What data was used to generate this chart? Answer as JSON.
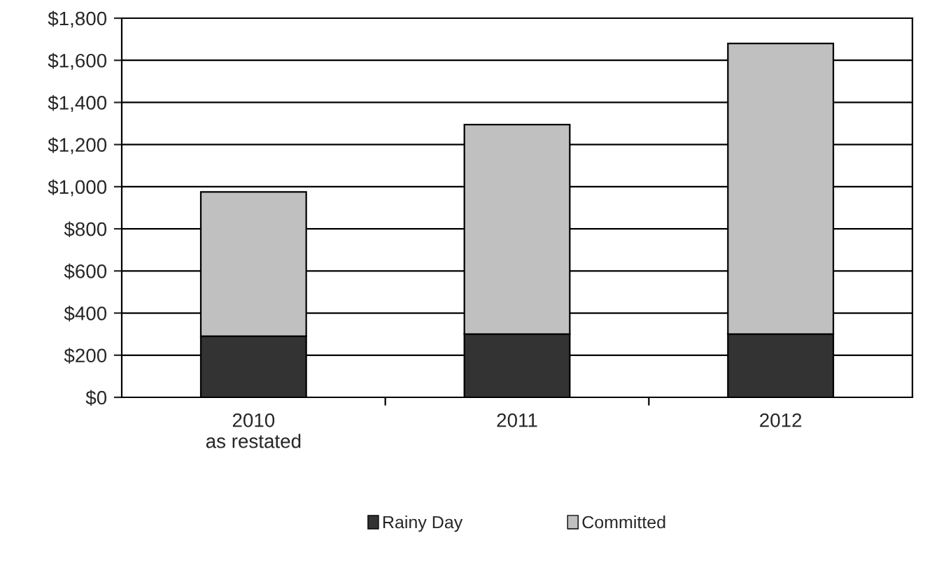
{
  "chart_data": {
    "type": "bar",
    "stacked": true,
    "categories": [
      "2010\nas restated",
      "2011",
      "2012"
    ],
    "series": [
      {
        "name": "Rainy Day",
        "color": "#333333",
        "values": [
          290,
          300,
          300
        ]
      },
      {
        "name": "Committed",
        "color": "#c0c0c0",
        "values": [
          685,
          995,
          1380
        ]
      }
    ],
    "ylim": [
      0,
      1800
    ],
    "yticks": [
      {
        "value": 0,
        "label": "$0"
      },
      {
        "value": 200,
        "label": "$200"
      },
      {
        "value": 400,
        "label": "$400"
      },
      {
        "value": 600,
        "label": "$600"
      },
      {
        "value": 800,
        "label": "$800"
      },
      {
        "value": 1000,
        "label": "$1,000"
      },
      {
        "value": 1200,
        "label": "$1,200"
      },
      {
        "value": 1400,
        "label": "$1,400"
      },
      {
        "value": 1600,
        "label": "$1,600"
      },
      {
        "value": 1800,
        "label": "$1,800"
      }
    ],
    "grid": "y",
    "legend": "bottom"
  }
}
